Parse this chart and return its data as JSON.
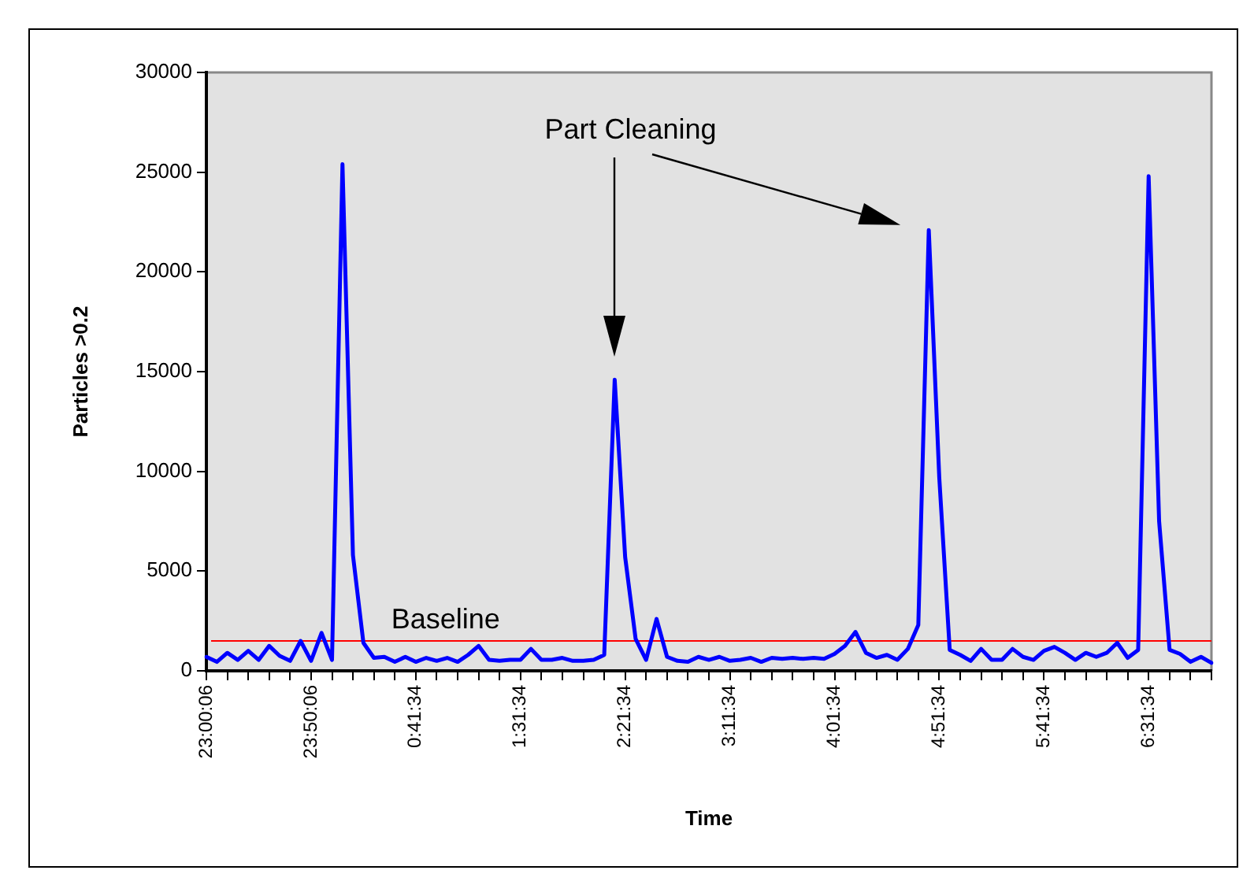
{
  "chart_data": {
    "type": "line",
    "xlabel": "Time",
    "ylabel": "Particles >0.2",
    "ylim": [
      0,
      30000
    ],
    "yticks": [
      0,
      5000,
      10000,
      15000,
      20000,
      25000,
      30000
    ],
    "categories": [
      "23:00:06",
      null,
      null,
      null,
      null,
      null,
      null,
      null,
      null,
      null,
      "23:50:06",
      null,
      null,
      null,
      null,
      null,
      null,
      null,
      null,
      null,
      "0:41:34",
      null,
      null,
      null,
      null,
      null,
      null,
      null,
      null,
      null,
      "1:31:34",
      null,
      null,
      null,
      null,
      null,
      null,
      null,
      null,
      null,
      "2:21:34",
      null,
      null,
      null,
      null,
      null,
      null,
      null,
      null,
      null,
      "3:11:34",
      null,
      null,
      null,
      null,
      null,
      null,
      null,
      null,
      null,
      "4:01:34",
      null,
      null,
      null,
      null,
      null,
      null,
      null,
      null,
      null,
      "4:51:34",
      null,
      null,
      null,
      null,
      null,
      null,
      null,
      null,
      null,
      "5:41:34",
      null,
      null,
      null,
      null,
      null,
      null,
      null,
      null,
      null,
      "6:31:34",
      null,
      null,
      null,
      null,
      null,
      null
    ],
    "series": [
      {
        "color": "#0000ff",
        "values": [
          700,
          450,
          900,
          550,
          1000,
          550,
          1250,
          750,
          500,
          1500,
          500,
          1900,
          550,
          25400,
          5800,
          1400,
          650,
          700,
          450,
          700,
          450,
          650,
          500,
          650,
          450,
          800,
          1250,
          550,
          500,
          550,
          550,
          1100,
          550,
          550,
          650,
          500,
          500,
          550,
          800,
          14600,
          5700,
          1600,
          550,
          2600,
          700,
          500,
          450,
          700,
          550,
          700,
          500,
          550,
          650,
          450,
          650,
          600,
          650,
          600,
          650,
          600,
          850,
          1250,
          1950,
          900,
          650,
          800,
          550,
          1100,
          2300,
          22100,
          9700,
          1050,
          800,
          500,
          1100,
          550,
          550,
          1100,
          700,
          550,
          1000,
          1200,
          900,
          550,
          900,
          700,
          900,
          1400,
          650,
          1050,
          24800,
          7500,
          1050,
          850,
          450,
          700,
          400
        ]
      }
    ],
    "marker": "none",
    "line_style": "solid",
    "ref_lines": [
      {
        "axis": "y",
        "value": 1500,
        "label": "Baseline",
        "color": "#ff0000"
      }
    ],
    "annotations": [
      "Part Cleaning"
    ]
  }
}
